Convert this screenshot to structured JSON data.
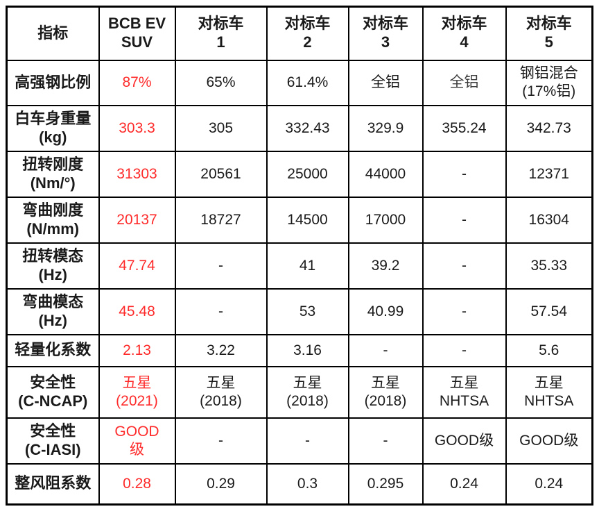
{
  "colors": {
    "accent_red": "#ff2a2a",
    "text": "#1a1a1a",
    "border": "#000000",
    "background": "#ffffff"
  },
  "table": {
    "columns": [
      {
        "label": "指标"
      },
      {
        "label": "BCB EV\nSUV"
      },
      {
        "label": "对标车\n1"
      },
      {
        "label": "对标车\n2"
      },
      {
        "label": "对标车\n3"
      },
      {
        "label": "对标车\n4"
      },
      {
        "label": "对标车\n5"
      }
    ],
    "rows": [
      {
        "label": "高强钢比例",
        "values": [
          "87%",
          "65%",
          "61.4%",
          "全铝",
          "全铝",
          "钢铝混合\n(17%铝)"
        ]
      },
      {
        "label": "白车身重量\n(kg)",
        "values": [
          "303.3",
          "305",
          "332.43",
          "329.9",
          "355.24",
          "342.73"
        ]
      },
      {
        "label": "扭转刚度\n(Nm/°)",
        "values": [
          "31303",
          "20561",
          "25000",
          "44000",
          "-",
          "12371"
        ]
      },
      {
        "label": "弯曲刚度\n(N/mm)",
        "values": [
          "20137",
          "18727",
          "14500",
          "17000",
          "-",
          "16304"
        ]
      },
      {
        "label": "扭转模态\n(Hz)",
        "values": [
          "47.74",
          "-",
          "41",
          "39.2",
          "-",
          "35.33"
        ]
      },
      {
        "label": "弯曲模态\n(Hz)",
        "values": [
          "45.48",
          "-",
          "53",
          "40.99",
          "-",
          "57.54"
        ]
      },
      {
        "label": "轻量化系数",
        "values": [
          "2.13",
          "3.22",
          "3.16",
          "-",
          "-",
          "5.6"
        ]
      },
      {
        "label": "安全性\n(C-NCAP)",
        "values": [
          "五星\n(2021)",
          "五星\n(2018)",
          "五星\n(2018)",
          "五星\n(2018)",
          "五星\nNHTSA",
          "五星\nNHTSA"
        ]
      },
      {
        "label": "安全性\n(C-IASI)",
        "values": [
          "GOOD\n级",
          "-",
          "-",
          "-",
          "GOOD级",
          "GOOD级"
        ]
      },
      {
        "label": "整风阻系数",
        "values": [
          "0.28",
          "0.29",
          "0.3",
          "0.295",
          "0.24",
          "0.24"
        ]
      }
    ]
  }
}
